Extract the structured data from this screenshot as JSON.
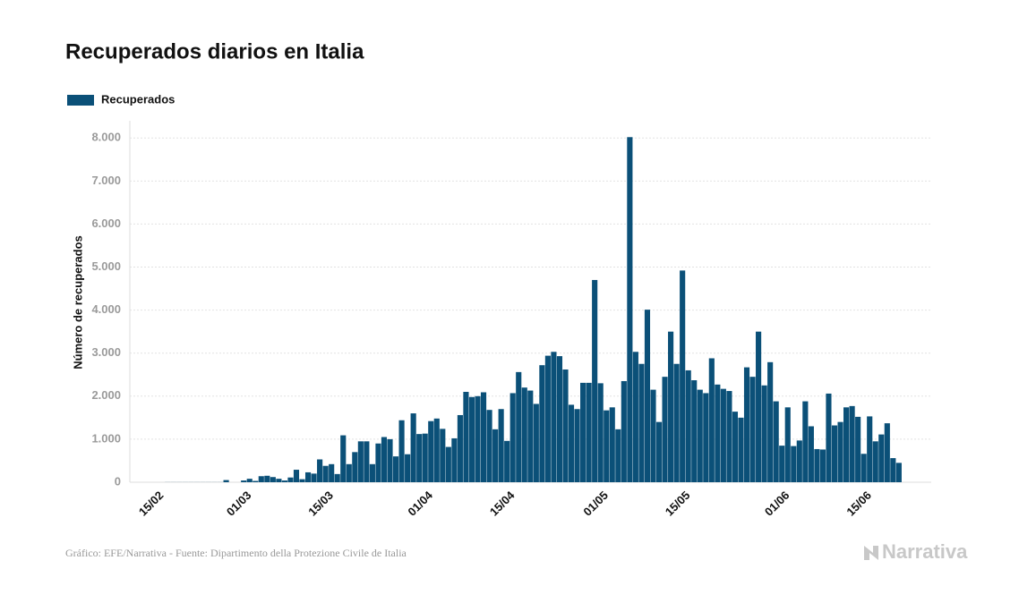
{
  "chart_data": {
    "type": "bar",
    "title": "Recuperados diarios en Italia",
    "y_label": "Número de recuperados",
    "source": "Gráfico: EFE/Narrativa - Fuente: Dipartimento della Protezione Civile de Italia",
    "logo": "Narrativa",
    "series": [
      {
        "name": "Recuperados",
        "color": "#0b5078",
        "values": [
          null,
          null,
          null,
          null,
          null,
          null,
          2,
          2,
          2,
          2,
          2,
          2,
          2,
          2,
          2,
          2,
          50,
          0,
          0,
          40,
          80,
          30,
          140,
          150,
          120,
          80,
          40,
          110,
          290,
          70,
          230,
          200,
          530,
          380,
          420,
          190,
          1090,
          420,
          700,
          950,
          950,
          420,
          900,
          1050,
          1000,
          600,
          1440,
          650,
          1600,
          1120,
          1130,
          1420,
          1480,
          1240,
          820,
          1020,
          1560,
          2100,
          1980,
          2000,
          2090,
          1680,
          1230,
          1700,
          960,
          2070,
          2560,
          2200,
          2130,
          1820,
          2720,
          2940,
          3030,
          2930,
          2620,
          1800,
          1700,
          2310,
          2310,
          4700,
          2300,
          1670,
          1740,
          1230,
          2350,
          8020,
          3030,
          2750,
          4010,
          2150,
          1400,
          2450,
          3500,
          2750,
          4920,
          2600,
          2370,
          2150,
          2070,
          2880,
          2270,
          2170,
          2120,
          1640,
          1500,
          2670,
          2450,
          3500,
          2250,
          2790,
          1880,
          850,
          1740,
          840,
          970,
          1880,
          1300,
          770,
          760,
          2060,
          1320,
          1400,
          1740,
          1770,
          1520,
          660,
          1530,
          950,
          1110,
          1370,
          560,
          450,
          null,
          null,
          null,
          null,
          null
        ]
      }
    ],
    "categories": [
      null,
      null,
      null,
      null,
      null,
      "15/02",
      null,
      null,
      null,
      null,
      null,
      null,
      null,
      null,
      null,
      null,
      null,
      null,
      null,
      null,
      "01/03",
      null,
      null,
      null,
      null,
      null,
      null,
      null,
      null,
      null,
      null,
      null,
      null,
      null,
      "15/03",
      null,
      null,
      null,
      null,
      null,
      null,
      null,
      null,
      null,
      null,
      null,
      null,
      null,
      null,
      null,
      null,
      "01/04",
      null,
      null,
      null,
      null,
      null,
      null,
      null,
      null,
      null,
      null,
      null,
      null,
      null,
      "15/04",
      null,
      null,
      null,
      null,
      null,
      null,
      null,
      null,
      null,
      null,
      null,
      null,
      null,
      null,
      null,
      "01/05",
      null,
      null,
      null,
      null,
      null,
      null,
      null,
      null,
      null,
      null,
      null,
      null,
      null,
      "15/05",
      null,
      null,
      null,
      null,
      null,
      null,
      null,
      null,
      null,
      null,
      null,
      null,
      null,
      null,
      null,
      null,
      "01/06",
      null,
      null,
      null,
      null,
      null,
      null,
      null,
      null,
      null,
      null,
      null,
      null,
      null,
      "15/06",
      null,
      null,
      null,
      null,
      null,
      null,
      null,
      null,
      null,
      null
    ],
    "ylim": [
      0,
      8400
    ],
    "yticks": [
      0,
      {
        "value": 1000,
        "label": "1.000"
      },
      {
        "value": 2000,
        "label": "2.000"
      },
      {
        "value": 3000,
        "label": "3.000"
      },
      {
        "value": 4000,
        "label": "4.000"
      },
      {
        "value": 5000,
        "label": "5.000"
      },
      {
        "value": 6000,
        "label": "6.000"
      },
      {
        "value": 7000,
        "label": "7.000"
      },
      {
        "value": 8000,
        "label": "8.000"
      }
    ],
    "grid": true,
    "legend": "top-left"
  }
}
